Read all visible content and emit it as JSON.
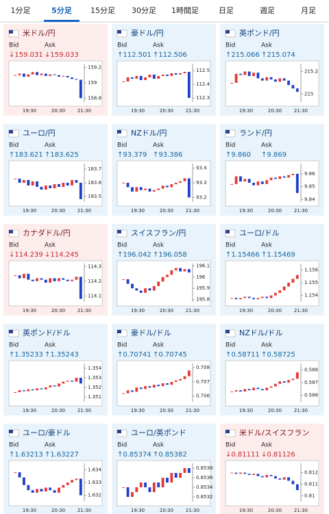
{
  "tabs": [
    "1分足",
    "5分足",
    "15分足",
    "30分足",
    "1時間足",
    "日足",
    "週足",
    "月足"
  ],
  "active_tab": 1,
  "bid_label": "Bid",
  "ask_label": "Ask",
  "time_ticks": [
    "19:30",
    "20:30",
    "21:30"
  ],
  "panels": [
    {
      "name": "米ドル/円",
      "bid": "↓159.031",
      "ask": "↓159.033",
      "direction": "down",
      "ylim": [
        158.75,
        159.25
      ],
      "yticks": [
        159.2,
        159,
        158.8
      ],
      "values": [
        159.1,
        159.12,
        159.08,
        159.11,
        159.14,
        159.1,
        159.12,
        159.09,
        159.11,
        159.1,
        159.08,
        159.09,
        159.07,
        159.05,
        159.04,
        158.8
      ]
    },
    {
      "name": "豪ドル/円",
      "bid": "↑112.501",
      "ask": "↑112.506",
      "direction": "up",
      "ylim": [
        112.27,
        112.55
      ],
      "yticks": [
        112.5,
        112.4,
        112.3
      ],
      "values": [
        112.42,
        112.45,
        112.44,
        112.46,
        112.43,
        112.45,
        112.47,
        112.44,
        112.46,
        112.47,
        112.46,
        112.48,
        112.47,
        112.48,
        112.49,
        112.3
      ]
    },
    {
      "name": "英ポンド/円",
      "bid": "↑215.066",
      "ask": "↑215.074",
      "direction": "up",
      "ylim": [
        214.93,
        215.27
      ],
      "yticks": [
        215.2,
        215
      ],
      "values": [
        215.1,
        215.18,
        215.17,
        215.2,
        215.16,
        215.19,
        215.14,
        215.12,
        215.15,
        215.13,
        215.11,
        215.14,
        215.12,
        215.08,
        215.05,
        215.02
      ]
    },
    {
      "name": "ユーロ/円",
      "bid": "↑183.621",
      "ask": "↑183.625",
      "direction": "up",
      "ylim": [
        183.46,
        183.74
      ],
      "yticks": [
        183.7,
        183.6,
        183.5
      ],
      "values": [
        183.63,
        183.6,
        183.62,
        183.58,
        183.61,
        183.57,
        183.55,
        183.58,
        183.56,
        183.59,
        183.57,
        183.6,
        183.58,
        183.62,
        183.6,
        183.48
      ]
    },
    {
      "name": "NZドル/円",
      "bid": "↑93.379",
      "ask": "↑93.386",
      "direction": "up",
      "ylim": [
        93.17,
        93.43
      ],
      "yticks": [
        93.4,
        93.3,
        93.2
      ],
      "values": [
        93.3,
        93.27,
        93.24,
        93.27,
        93.25,
        93.26,
        93.24,
        93.25,
        93.26,
        93.28,
        93.27,
        93.29,
        93.3,
        93.31,
        93.33,
        93.2
      ]
    },
    {
      "name": "ランド/円",
      "bid": "↑9.860",
      "ask": "↑9.869",
      "direction": "up",
      "ylim": [
        9.838,
        9.868
      ],
      "yticks": [
        9.86,
        9.85,
        9.84
      ],
      "values": [
        9.852,
        9.858,
        9.854,
        9.856,
        9.853,
        9.851,
        9.854,
        9.852,
        9.855,
        9.857,
        9.856,
        9.858,
        9.857,
        9.859,
        9.86,
        9.845
      ]
    },
    {
      "name": "カナダドル/円",
      "bid": "↓114.239",
      "ask": "↓114.245",
      "direction": "down",
      "ylim": [
        114.06,
        114.32
      ],
      "yticks": [
        114.3,
        114.2,
        114.1
      ],
      "values": [
        114.24,
        114.22,
        114.25,
        114.21,
        114.2,
        114.22,
        114.21,
        114.19,
        114.22,
        114.2,
        114.22,
        114.21,
        114.2,
        114.21,
        114.23,
        114.08
      ]
    },
    {
      "name": "スイスフラン/円",
      "bid": "↑196.042",
      "ask": "↑196.058",
      "direction": "up",
      "ylim": [
        195.78,
        196.12
      ],
      "yticks": [
        196.1,
        196,
        195.9,
        195.8
      ],
      "values": [
        195.98,
        195.94,
        195.9,
        195.88,
        195.86,
        195.9,
        195.88,
        195.92,
        195.96,
        196.0,
        196.02,
        196.06,
        196.08,
        196.05,
        196.07,
        196.04
      ]
    },
    {
      "name": "ユーロ/ドル",
      "bid": "↑1.15466",
      "ask": "↑1.15469",
      "direction": "up",
      "ylim": [
        1.1535,
        1.1565
      ],
      "yticks": [
        1.156,
        1.155,
        1.154
      ],
      "values": [
        1.1538,
        1.1537,
        1.1538,
        1.1539,
        1.1538,
        1.1537,
        1.1538,
        1.1539,
        1.1538,
        1.154,
        1.1542,
        1.1544,
        1.1547,
        1.155,
        1.1553,
        1.1556
      ]
    },
    {
      "name": "英ポンド/ドル",
      "bid": "↑1.35233",
      "ask": "↑1.35243",
      "direction": "up",
      "ylim": [
        1.3505,
        1.3545
      ],
      "yticks": [
        1.354,
        1.353,
        1.352,
        1.351
      ],
      "values": [
        1.3515,
        1.3517,
        1.3516,
        1.3518,
        1.3517,
        1.3519,
        1.3518,
        1.352,
        1.3522,
        1.3521,
        1.3524,
        1.3526,
        1.3527,
        1.3526,
        1.353,
        1.3524
      ]
    },
    {
      "name": "豪ドル/ドル",
      "bid": "↑0.70741",
      "ask": "↑0.70745",
      "direction": "up",
      "ylim": [
        0.7056,
        0.7083
      ],
      "yticks": [
        0.708,
        0.707,
        0.706
      ],
      "values": [
        0.7062,
        0.7064,
        0.7063,
        0.7066,
        0.7065,
        0.7067,
        0.7066,
        0.7068,
        0.7067,
        0.7069,
        0.7068,
        0.707,
        0.7071,
        0.7072,
        0.7074,
        0.7078
      ]
    },
    {
      "name": "NZドル/ドル",
      "bid": "↑0.58711",
      "ask": "↑0.58725",
      "direction": "up",
      "ylim": [
        0.5855,
        0.5885
      ],
      "yticks": [
        0.588,
        0.587,
        0.586
      ],
      "values": [
        0.5863,
        0.5864,
        0.5863,
        0.5865,
        0.5864,
        0.5866,
        0.5865,
        0.5864,
        0.5866,
        0.5867,
        0.5869,
        0.5871,
        0.587,
        0.5872,
        0.5873,
        0.5878
      ]
    },
    {
      "name": "ユーロ/豪ドル",
      "bid": "↑1.63213",
      "ask": "↑1.63227",
      "direction": "up",
      "ylim": [
        1.6315,
        1.6345
      ],
      "yticks": [
        1.634,
        1.633,
        1.632
      ],
      "values": [
        1.6338,
        1.6334,
        1.6328,
        1.6324,
        1.6322,
        1.6325,
        1.6323,
        1.6326,
        1.6324,
        1.6322,
        1.6326,
        1.6328,
        1.633,
        1.6332,
        1.6333,
        1.632
      ]
    },
    {
      "name": "ユーロ/英ポンド",
      "bid": "↑0.85374",
      "ask": "↑0.85382",
      "direction": "up",
      "ylim": [
        0.8531,
        0.8539
      ],
      "yticks": [
        0.8538,
        0.8536,
        0.8534,
        0.8532
      ],
      "values": [
        0.8534,
        0.8532,
        0.8533,
        0.8534,
        0.8535,
        0.8534,
        0.8533,
        0.8535,
        0.8534,
        0.8536,
        0.8535,
        0.8537,
        0.8536,
        0.8537,
        0.8538,
        0.8537
      ]
    },
    {
      "name": "米ドル/スイスフラン",
      "bid": "↓0.81111",
      "ask": "↓0.81126",
      "direction": "down",
      "ylim": [
        0.8095,
        0.8128
      ],
      "yticks": [
        0.812,
        0.811,
        0.81
      ],
      "values": [
        0.812,
        0.8119,
        0.812,
        0.8119,
        0.8118,
        0.8119,
        0.8117,
        0.8116,
        0.8118,
        0.8117,
        0.8115,
        0.8114,
        0.8116,
        0.8113,
        0.811,
        0.8105
      ]
    }
  ]
}
